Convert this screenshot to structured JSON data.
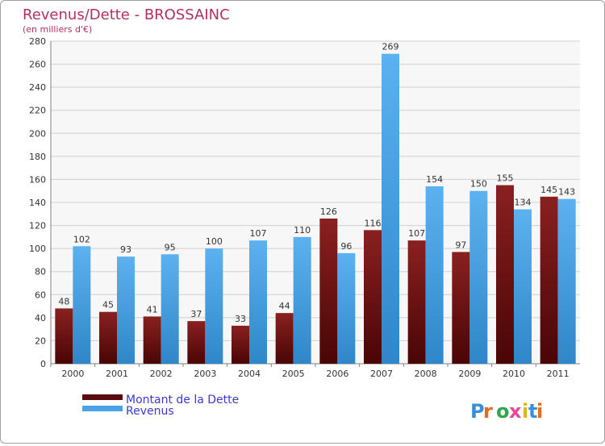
{
  "chart_data": {
    "type": "bar",
    "title": "Revenus/Dette - BROSSAINC",
    "subtitle": "(en milliers d'€)",
    "categories": [
      "2000",
      "2001",
      "2002",
      "2003",
      "2004",
      "2005",
      "2006",
      "2007",
      "2008",
      "2009",
      "2010",
      "2011"
    ],
    "series": [
      {
        "name": "Montant de la Dette",
        "color": "#7a1414",
        "values": [
          48,
          45,
          41,
          37,
          33,
          44,
          126,
          116,
          107,
          97,
          155,
          145
        ]
      },
      {
        "name": "Revenus",
        "color": "#4aa3e6",
        "values": [
          102,
          93,
          95,
          100,
          107,
          110,
          96,
          269,
          154,
          150,
          134,
          143
        ]
      }
    ],
    "ylim": [
      0,
      280
    ],
    "yticks": [
      0,
      20,
      40,
      60,
      80,
      100,
      120,
      140,
      160,
      180,
      200,
      220,
      240,
      260,
      280
    ],
    "grid": true,
    "legend_position": "bottom-left"
  },
  "colors": {
    "title": "#b03060",
    "legend_text": "#3a3ad0",
    "grid": "#d0d0d0",
    "plot_background": "#f7f7f7"
  },
  "logo": {
    "text": "Proxiti"
  }
}
